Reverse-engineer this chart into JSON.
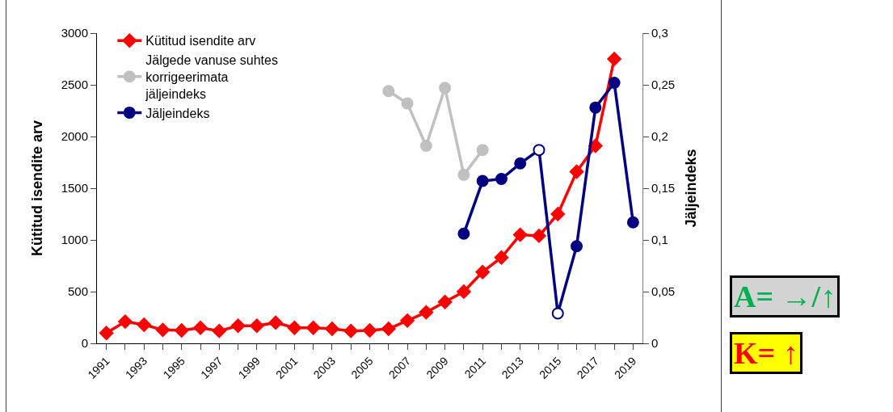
{
  "chart_data": {
    "type": "line",
    "x": [
      1991,
      1992,
      1993,
      1994,
      1995,
      1996,
      1997,
      1998,
      1999,
      2000,
      2001,
      2002,
      2003,
      2004,
      2005,
      2006,
      2007,
      2008,
      2009,
      2010,
      2011,
      2012,
      2013,
      2014,
      2015,
      2016,
      2017,
      2018,
      2019
    ],
    "xlim": [
      1990.5,
      2019.5
    ],
    "xticks": [
      1991,
      {
        "value": 1992,
        "label": null
      },
      1993,
      {
        "value": 1994,
        "label": null
      },
      1995,
      {
        "value": 1996,
        "label": null
      },
      1997,
      {
        "value": 1998,
        "label": null
      },
      1999,
      {
        "value": 2000,
        "label": null
      },
      2001,
      {
        "value": 2002,
        "label": null
      },
      2003,
      {
        "value": 2004,
        "label": null
      },
      2005,
      {
        "value": 2006,
        "label": null
      },
      2007,
      {
        "value": 2008,
        "label": null
      },
      2009,
      {
        "value": 2010,
        "label": null
      },
      2011,
      {
        "value": 2012,
        "label": null
      },
      2013,
      {
        "value": 2014,
        "label": null
      },
      2015,
      {
        "value": 2016,
        "label": null
      },
      2017,
      {
        "value": 2018,
        "label": null
      },
      2019
    ],
    "ylabel": "Kütitud isendite arv",
    "y2label": "Jäljeindeks",
    "ylim": [
      0,
      3000
    ],
    "yticks": [
      0,
      500,
      1000,
      1500,
      2000,
      2500,
      3000
    ],
    "y2lim": [
      0,
      0.3
    ],
    "y2ticks": [
      0,
      {
        "value": 0.05,
        "label": "0,05"
      },
      {
        "value": 0.1,
        "label": "0,1"
      },
      {
        "value": 0.15,
        "label": "0,15"
      },
      {
        "value": 0.2,
        "label": "0,2"
      },
      {
        "value": 0.25,
        "label": "0,25"
      },
      {
        "value": 0.3,
        "label": "0,3"
      }
    ],
    "grid": false,
    "legend": "top left",
    "series": [
      {
        "name": "Kütitud isendite arv",
        "color": "#ff0000",
        "marker": "diamond",
        "values": [
          100,
          210,
          180,
          130,
          125,
          150,
          120,
          170,
          170,
          200,
          150,
          150,
          140,
          120,
          125,
          140,
          220,
          300,
          400,
          500,
          690,
          830,
          1050,
          1040,
          1250,
          1660,
          1910,
          2750,
          null
        ]
      },
      {
        "name": "Jälgede vanuse suhtes korrigeerimata jäljeindeks",
        "color": "#c0c0c0",
        "marker": "circle",
        "axis": "y2",
        "values": [
          null,
          null,
          null,
          null,
          null,
          null,
          null,
          null,
          null,
          null,
          null,
          null,
          null,
          null,
          null,
          0.244,
          0.232,
          0.191,
          0.247,
          0.163,
          0.187,
          null,
          null,
          null,
          null,
          null,
          null,
          null,
          null
        ]
      },
      {
        "name": "Jäljeindeks",
        "color": "#000080",
        "marker": "circle",
        "axis": "y2",
        "colors": [
          "#000080",
          "#000080",
          "#000080",
          "#000080",
          "#000080",
          "#000080",
          "#000080",
          "#000080",
          "#000080",
          "#000080",
          "#000080",
          "#000080",
          "#000080",
          "#000080",
          "#000080",
          "#000080",
          "#000080",
          "#000080",
          "#000080",
          "#000080",
          "#000080",
          "#000080",
          "#000080",
          "#ffffff",
          "#ffffff",
          "#000080",
          "#000080",
          "#000080",
          "#000080"
        ],
        "values": [
          null,
          null,
          null,
          null,
          null,
          null,
          null,
          null,
          null,
          null,
          null,
          null,
          null,
          null,
          null,
          null,
          null,
          null,
          null,
          0.106,
          0.157,
          0.159,
          0.174,
          0.187,
          0.029,
          0.094,
          0.228,
          0.252,
          0.117
        ]
      }
    ],
    "annotations": [
      "A= →/↑",
      "K= ↑"
    ]
  }
}
